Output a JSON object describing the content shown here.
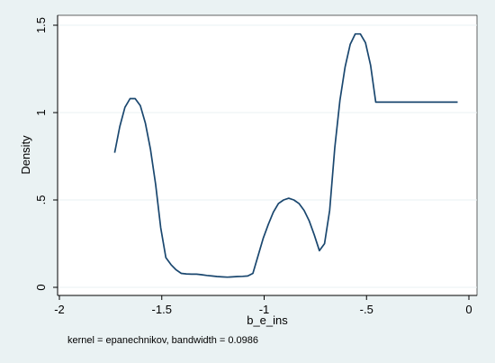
{
  "chart_data": {
    "type": "line",
    "title": "",
    "xlabel": "b_e_ins",
    "ylabel": "Density",
    "note": "kernel = epanechnikov, bandwidth = 0.0986",
    "xlim": [
      -2,
      0
    ],
    "ylim": [
      0,
      1.5
    ],
    "grid": true,
    "x_ticks": [
      -2,
      -1.5,
      -1,
      -0.5,
      0
    ],
    "x_tick_labels": [
      "-2",
      "-1.5",
      "-1",
      "-.5",
      "0"
    ],
    "y_ticks": [
      0,
      0.5,
      1,
      1.5
    ],
    "y_tick_labels": [
      "0",
      ".5",
      "1",
      "1.5"
    ],
    "colors": {
      "line": "#1a476f",
      "plot_bg": "#ffffff",
      "outer_bg": "#eaf2f3",
      "grid": "#eaf2f3"
    },
    "series": [
      {
        "x": [
          -1.73,
          -1.705,
          -1.68,
          -1.655,
          -1.63,
          -1.605,
          -1.58,
          -1.555,
          -1.53,
          -1.505,
          -1.48,
          -1.455,
          -1.43,
          -1.405,
          -1.38,
          -1.355,
          -1.33,
          -1.305,
          -1.28,
          -1.255,
          -1.23,
          -1.205,
          -1.18,
          -1.155,
          -1.13,
          -1.105,
          -1.08,
          -1.055,
          -1.03,
          -1.005,
          -0.98,
          -0.955,
          -0.93,
          -0.905,
          -0.88,
          -0.855,
          -0.83,
          -0.805,
          -0.78,
          -0.755,
          -0.73,
          -0.705,
          -0.68,
          -0.655,
          -0.63,
          -0.605,
          -0.58,
          -0.555,
          -0.53,
          -0.505,
          -0.48,
          -0.455,
          -0.43,
          -0.405,
          -0.38,
          -0.355,
          -0.33,
          -0.305,
          -0.28,
          -0.255,
          -0.23,
          -0.205,
          -0.18,
          -0.155,
          -0.13,
          -0.105,
          -0.08,
          -0.055
        ],
        "y": [
          0.77,
          0.92,
          1.03,
          1.08,
          1.08,
          1.04,
          0.94,
          0.79,
          0.59,
          0.34,
          0.17,
          0.13,
          0.1,
          0.08,
          0.077,
          0.075,
          0.075,
          0.072,
          0.068,
          0.065,
          0.062,
          0.06,
          0.058,
          0.06,
          0.062,
          0.063,
          0.065,
          0.08,
          0.18,
          0.28,
          0.36,
          0.43,
          0.48,
          0.5,
          0.51,
          0.5,
          0.48,
          0.44,
          0.38,
          0.3,
          0.21,
          0.25,
          0.44,
          0.8,
          1.07,
          1.26,
          1.39,
          1.45,
          1.45,
          1.4,
          1.27,
          1.06,
          1.06,
          1.06,
          1.06,
          1.06,
          1.06,
          1.06,
          1.06,
          1.06,
          1.06,
          1.06,
          1.06,
          1.06,
          1.06,
          1.06,
          1.06,
          1.06
        ]
      }
    ]
  }
}
